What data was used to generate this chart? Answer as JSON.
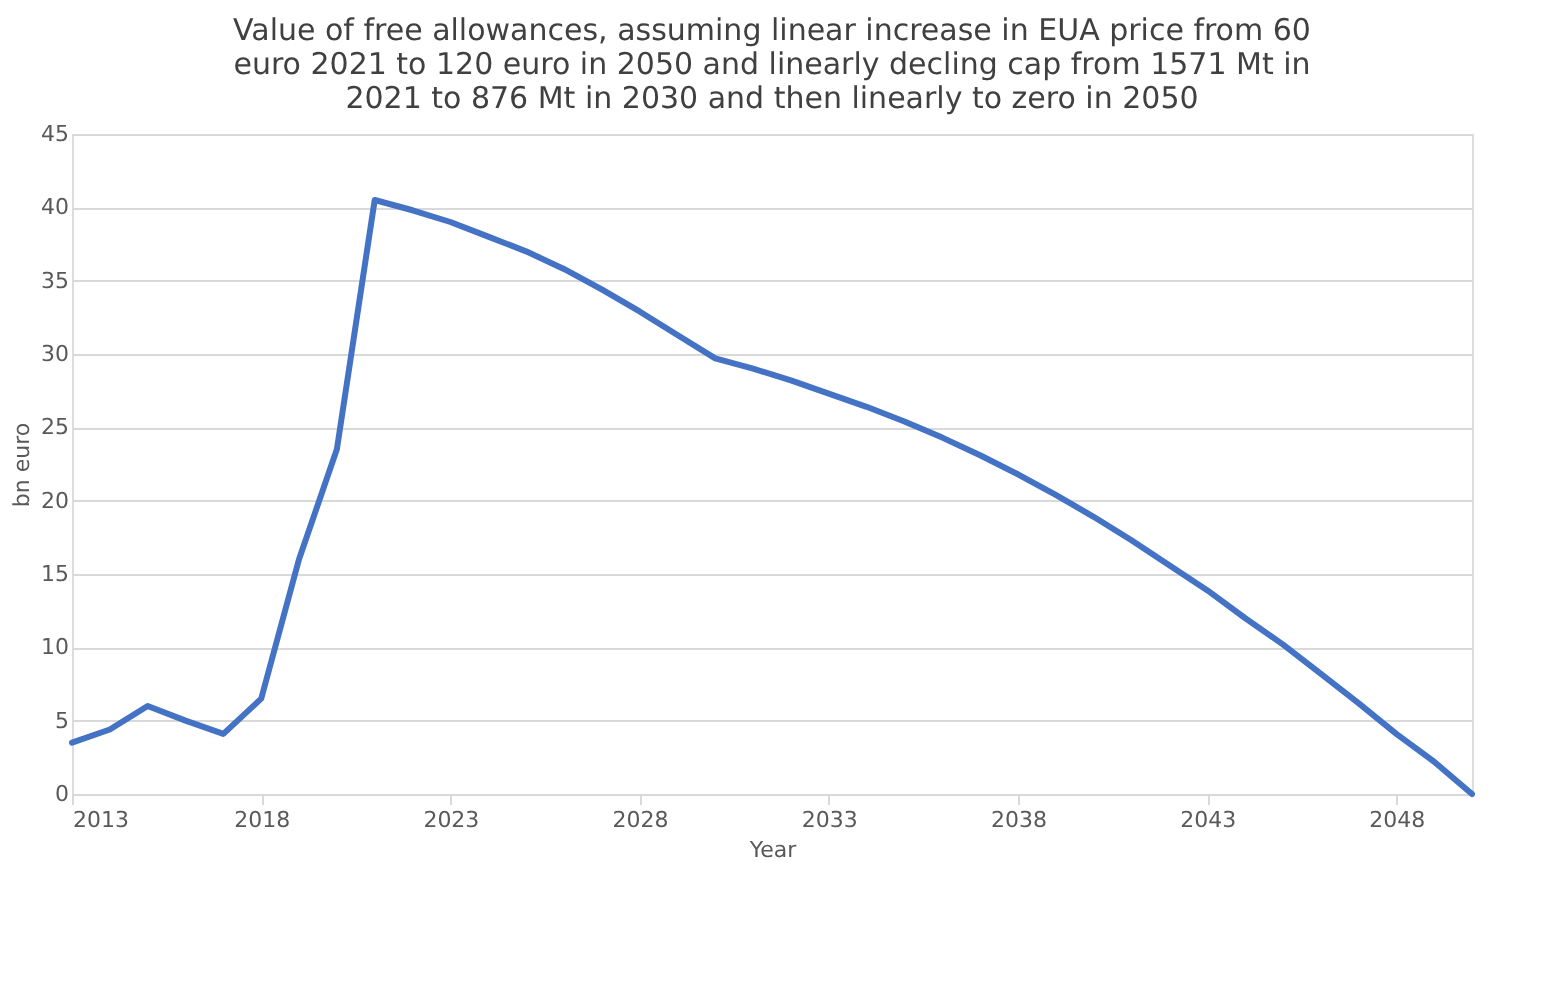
{
  "chart_data": {
    "type": "line",
    "title": "Value of free allowances, assuming linear increase in EUA price from 60 euro 2021 to 120 euro in 2050 and linearly decling cap from 1571 Mt in 2021 to 876 Mt in 2030 and then linearly to zero in 2050",
    "xlabel": "Year",
    "ylabel": "bn euro",
    "x": [
      2013,
      2014,
      2015,
      2016,
      2017,
      2018,
      2019,
      2020,
      2021,
      2022,
      2023,
      2024,
      2025,
      2026,
      2027,
      2028,
      2029,
      2030,
      2031,
      2032,
      2033,
      2034,
      2035,
      2036,
      2037,
      2038,
      2039,
      2040,
      2041,
      2042,
      2043,
      2044,
      2045,
      2046,
      2047,
      2048,
      2049,
      2050
    ],
    "series": [
      {
        "color": "#4472c4",
        "values": [
          3.5,
          4.4,
          6.0,
          5.0,
          4.1,
          6.5,
          16.0,
          23.5,
          40.5,
          39.8,
          39.0,
          38.0,
          37.0,
          35.8,
          34.4,
          32.9,
          31.3,
          29.7,
          29.0,
          28.2,
          27.3,
          26.4,
          25.4,
          24.3,
          23.1,
          21.8,
          20.4,
          18.9,
          17.3,
          15.6,
          13.9,
          12.0,
          10.2,
          8.2,
          6.2,
          4.1,
          2.2,
          0
        ]
      }
    ],
    "xlim": [
      2013,
      2050
    ],
    "xticks": [
      2013,
      2018,
      2023,
      2028,
      2033,
      2038,
      2043,
      2048
    ],
    "ylim": [
      0,
      45
    ],
    "yticks": [
      0,
      5,
      10,
      15,
      20,
      25,
      30,
      35,
      40,
      45
    ],
    "grid": "y",
    "legend": false,
    "marker": "none",
    "line_style": "solid"
  }
}
